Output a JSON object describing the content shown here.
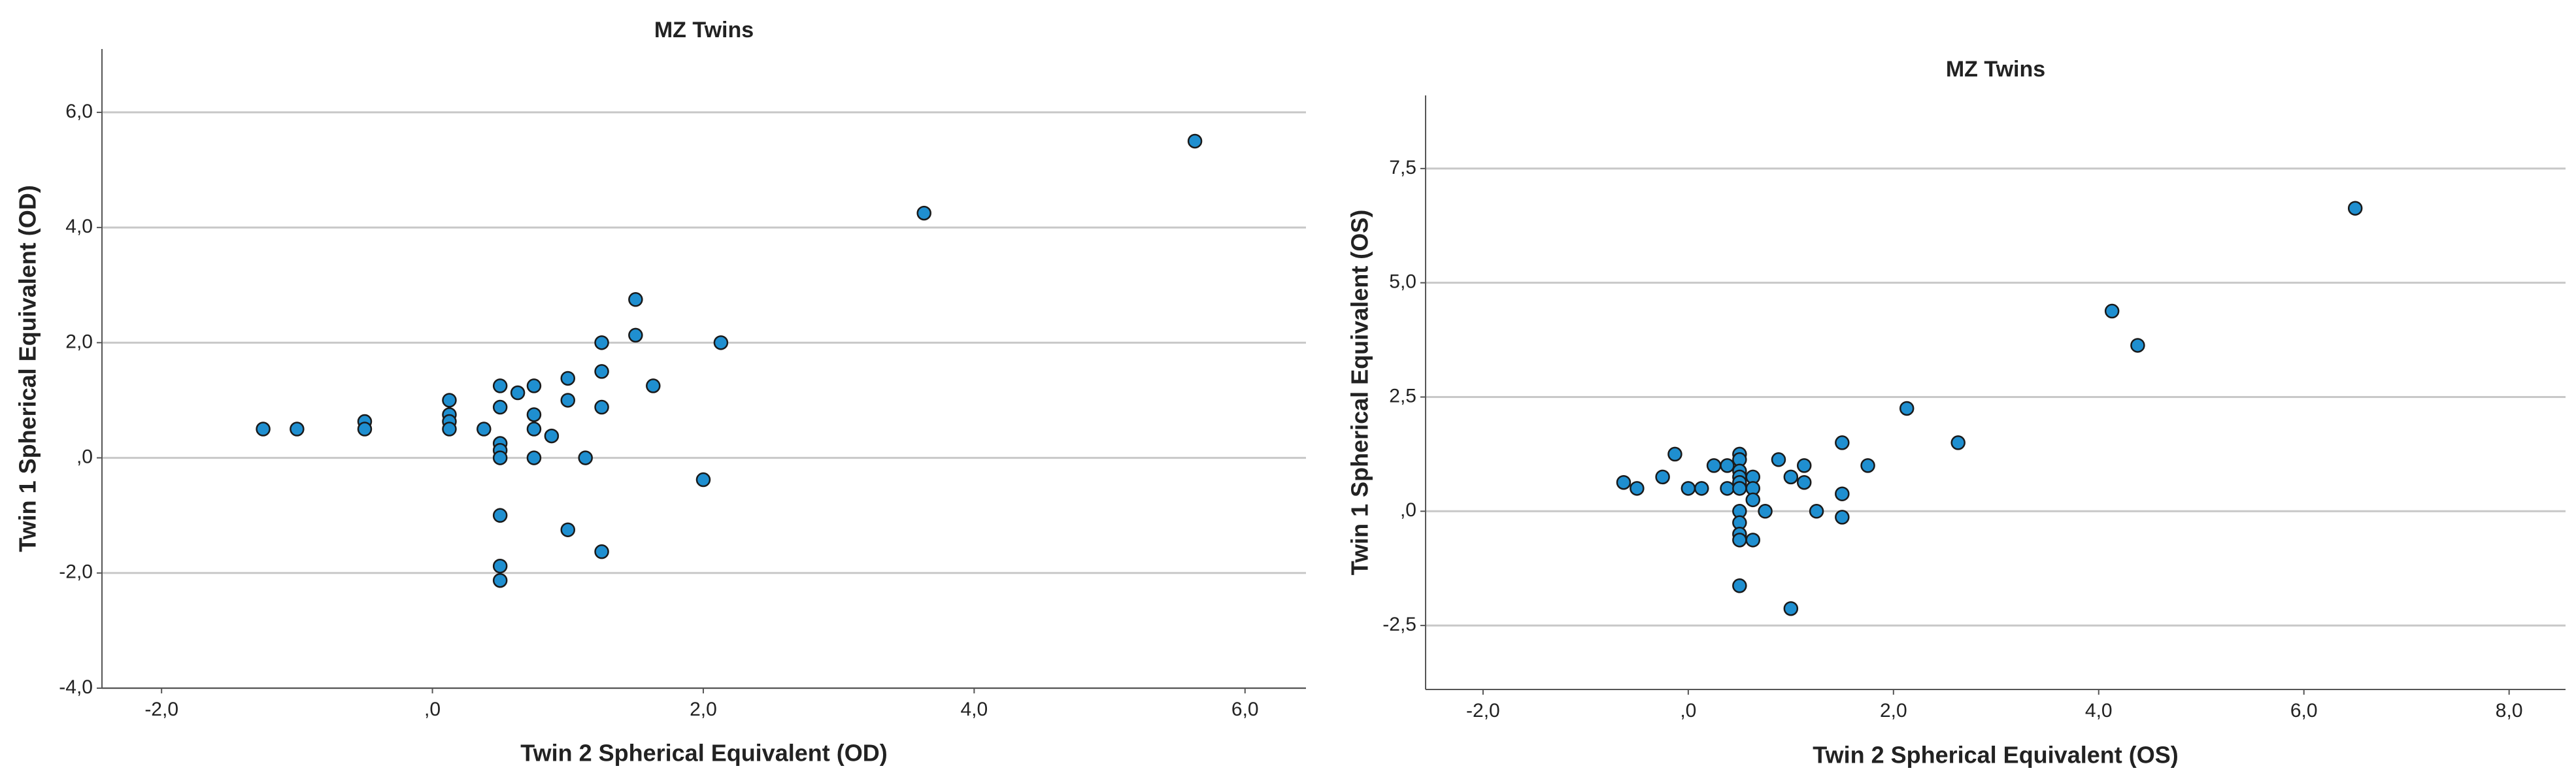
{
  "chart_data": [
    {
      "type": "scatter",
      "title": "MZ Twins",
      "x_label": "Twin 2 Spherical Equivalent (OD)",
      "y_label": "Twin 1 Spherical Equivalent (OD)",
      "color": "#1f8fd0",
      "grid": true,
      "xlim": [
        -2.44,
        6.45
      ],
      "ylim": [
        -4,
        7.1
      ],
      "xticks": [
        {
          "value": -2,
          "label": "-2,0"
        },
        {
          "value": 0,
          "label": ",0"
        },
        {
          "value": 2,
          "label": "2,0"
        },
        {
          "value": 4,
          "label": "4,0"
        },
        {
          "value": 6,
          "label": "6,0"
        }
      ],
      "yticks": [
        {
          "value": -4,
          "label": "-4,0"
        },
        {
          "value": -2,
          "label": "-2,0"
        },
        {
          "value": 0,
          "label": ",0"
        },
        {
          "value": 2,
          "label": "2,0"
        },
        {
          "value": 4,
          "label": "4,0"
        },
        {
          "value": 6,
          "label": "6,0"
        }
      ],
      "x": [
        -1.25,
        -1.0,
        -0.5,
        -0.5,
        0.125,
        0.125,
        0.125,
        0.125,
        0.38,
        0.5,
        0.5,
        0.5,
        0.5,
        0.5,
        0.5,
        0.5,
        0.5,
        0.63,
        0.75,
        0.75,
        0.75,
        0.75,
        0.88,
        1.0,
        1.0,
        1.0,
        1.13,
        1.25,
        1.25,
        1.25,
        1.25,
        1.5,
        1.5,
        1.63,
        2.0,
        2.13,
        3.63,
        5.63
      ],
      "values": [
        0.5,
        0.5,
        0.63,
        0.5,
        1.0,
        0.75,
        0.63,
        0.5,
        0.5,
        1.25,
        0.88,
        0.25,
        0.13,
        0,
        -1.0,
        -1.88,
        -2.13,
        1.13,
        1.25,
        0.75,
        0.5,
        0,
        0.38,
        1.38,
        1.0,
        -1.25,
        0,
        2.0,
        1.5,
        0.88,
        -1.63,
        2.75,
        2.13,
        1.25,
        -0.38,
        2.0,
        4.25,
        5.5
      ]
    },
    {
      "type": "scatter",
      "title": "MZ Twins",
      "x_label": "Twin 2 Spherical Equivalent (OS)",
      "y_label": "Twin 1 Spherical Equivalent (OS)",
      "color": "#1f8fd0",
      "grid": true,
      "xlim": [
        -2.56,
        8.55
      ],
      "ylim": [
        -3.9,
        9.1
      ],
      "xticks": [
        {
          "value": -2,
          "label": "-2,0"
        },
        {
          "value": 0,
          "label": ",0"
        },
        {
          "value": 2,
          "label": "2,0"
        },
        {
          "value": 4,
          "label": "4,0"
        },
        {
          "value": 6,
          "label": "6,0"
        },
        {
          "value": 8,
          "label": "8,0"
        }
      ],
      "yticks": [
        {
          "value": -2.5,
          "label": "-2,5"
        },
        {
          "value": 0,
          "label": ",0"
        },
        {
          "value": 2.5,
          "label": "2,5"
        },
        {
          "value": 5,
          "label": "5,0"
        },
        {
          "value": 7.5,
          "label": "7,5"
        }
      ],
      "x": [
        -0.63,
        -0.5,
        -0.25,
        -0.13,
        0,
        0.13,
        0.25,
        0.38,
        0.38,
        0.5,
        0.5,
        0.5,
        0.5,
        0.5,
        0.5,
        0.5,
        0.5,
        0.5,
        0.5,
        0.5,
        0.63,
        0.63,
        0.63,
        0.63,
        0.75,
        0.88,
        1.0,
        1.0,
        1.13,
        1.13,
        1.25,
        1.5,
        1.5,
        1.5,
        1.75,
        2.13,
        2.63,
        4.13,
        4.38,
        6.5
      ],
      "values": [
        0.63,
        0.5,
        0.75,
        1.25,
        0.5,
        0.5,
        1.0,
        0.5,
        1.0,
        1.25,
        1.13,
        0.88,
        0.75,
        0.63,
        0.5,
        0,
        -0.25,
        -0.5,
        -0.63,
        -1.63,
        0.75,
        0.5,
        0.25,
        -0.63,
        0,
        1.13,
        0.75,
        -2.13,
        1.0,
        0.63,
        0,
        1.5,
        0.38,
        -0.13,
        1.0,
        2.25,
        1.5,
        4.38,
        3.63,
        6.63
      ]
    }
  ]
}
